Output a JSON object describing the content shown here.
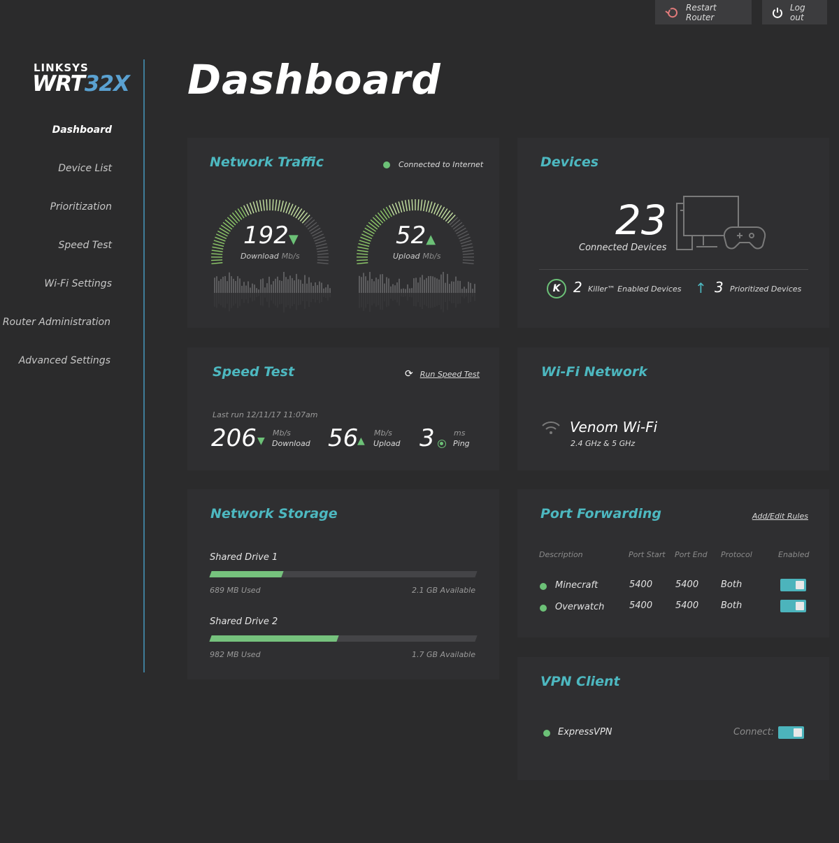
{
  "topbar": {
    "restart_label": "Restart Router",
    "logout_label": "Log out"
  },
  "logo": {
    "brand": "LINKSYS",
    "model_prefix": "WRT",
    "model_suffix": "32X"
  },
  "sidebar": {
    "items": [
      {
        "label": "Dashboard"
      },
      {
        "label": "Device List"
      },
      {
        "label": "Prioritization"
      },
      {
        "label": "Speed Test"
      },
      {
        "label": "Wi-Fi Settings"
      },
      {
        "label": "Router Administration"
      },
      {
        "label": "Advanced Settings"
      }
    ]
  },
  "page": {
    "title": "Dashboard"
  },
  "network_traffic": {
    "title": "Network Traffic",
    "status": "Connected to Internet",
    "download": {
      "value": "192",
      "label": "Download",
      "unit": "Mb/s"
    },
    "upload": {
      "value": "52",
      "label": "Upload",
      "unit": "Mb/s"
    }
  },
  "devices": {
    "title": "Devices",
    "connected_count": "23",
    "connected_label": "Connected Devices",
    "killer_count": "2",
    "killer_label": "Killer™ Enabled Devices",
    "prioritized_count": "3",
    "prioritized_label": "Prioritized Devices"
  },
  "speed_test": {
    "title": "Speed Test",
    "run_label": "Run Speed Test",
    "last_run": "Last run 12/11/17 11:07am",
    "download_value": "206",
    "download_unit": "Mb/s",
    "download_label": "Download",
    "upload_value": "56",
    "upload_unit": "Mb/s",
    "upload_label": "Upload",
    "ping_value": "3",
    "ping_unit": "ms",
    "ping_label": "Ping"
  },
  "wifi": {
    "title": "Wi-Fi Network",
    "name": "Venom Wi-Fi",
    "bands": "2.4 GHz & 5 GHz"
  },
  "storage": {
    "title": "Network Storage",
    "drives": [
      {
        "name": "Shared Drive 1",
        "used": "689 MB Used",
        "available": "2.1 GB Available",
        "fraction_used": 0.27
      },
      {
        "name": "Shared Drive 2",
        "used": "982 MB Used",
        "available": "1.7 GB Available",
        "fraction_used": 0.48
      }
    ]
  },
  "port_forwarding": {
    "title": "Port Forwarding",
    "add_edit_label": "Add/Edit Rules",
    "columns": [
      "Description",
      "Port Start",
      "Port End",
      "Protocol",
      "Enabled"
    ],
    "rows": [
      {
        "description": "Minecraft",
        "port_start": "5400",
        "port_end": "5400",
        "protocol": "Both",
        "enabled": true
      },
      {
        "description": "Overwatch",
        "port_start": "5400",
        "port_end": "5400",
        "protocol": "Both",
        "enabled": true
      }
    ]
  },
  "vpn": {
    "title": "VPN Client",
    "name": "ExpressVPN",
    "connect_label": "Connect:",
    "connected": true
  },
  "colors": {
    "accent_teal": "#4db8c0",
    "status_green": "#6cc177",
    "restart_icon": "#e27b7b",
    "bar_fill": "#76c27d"
  }
}
